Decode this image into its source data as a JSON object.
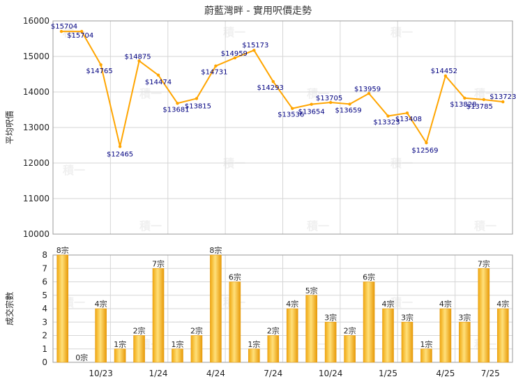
{
  "chart_data": [
    {
      "type": "line",
      "title": "蔚藍灣畔 - 實用呎價走勢",
      "ylabel": "平均呎價",
      "xlabel": "",
      "ylim": [
        10000,
        16000
      ],
      "yticks": [
        10000,
        11000,
        12000,
        13000,
        14000,
        15000,
        16000
      ],
      "grid": true,
      "series_color": "#FFA500",
      "series": [
        {
          "values": [
            15704,
            15704,
            14765,
            12465,
            14875,
            14474,
            13681,
            13815,
            14731,
            14959,
            15173,
            14293,
            13536,
            13654,
            13705,
            13659,
            13959,
            13323,
            13408,
            12569,
            14452,
            13828,
            13785,
            13723
          ]
        }
      ]
    },
    {
      "type": "bar",
      "ylabel": "成交宗數",
      "xlabel": "",
      "ylim": [
        0,
        8
      ],
      "yticks": [
        0,
        1,
        2,
        3,
        4,
        5,
        6,
        7,
        8
      ],
      "grid": true,
      "bar_color": "#F5B120",
      "x_tick_labels": [
        {
          "index": 2.5,
          "label": "10/23"
        },
        {
          "index": 5.5,
          "label": "1/24"
        },
        {
          "index": 8.5,
          "label": "4/24"
        },
        {
          "index": 11.5,
          "label": "7/24"
        },
        {
          "index": 14.5,
          "label": "10/24"
        },
        {
          "index": 17.5,
          "label": "1/25"
        },
        {
          "index": 20.5,
          "label": "4/25"
        },
        {
          "index": 23.5,
          "label": "7/25"
        }
      ],
      "values": [
        8,
        0,
        4,
        1,
        2,
        7,
        1,
        2,
        8,
        6,
        1,
        2,
        4,
        5,
        3,
        2,
        6,
        4,
        3,
        1,
        4,
        3,
        7,
        4
      ],
      "labels": [
        "8宗",
        "0宗",
        "4宗",
        "1宗",
        "2宗",
        "7宗",
        "1宗",
        "2宗",
        "8宗",
        "6宗",
        "1宗",
        "2宗",
        "4宗",
        "5宗",
        "3宗",
        "2宗",
        "6宗",
        "4宗",
        "3宗",
        "1宗",
        "4宗",
        "3宗",
        "7宗",
        "4宗"
      ]
    }
  ]
}
